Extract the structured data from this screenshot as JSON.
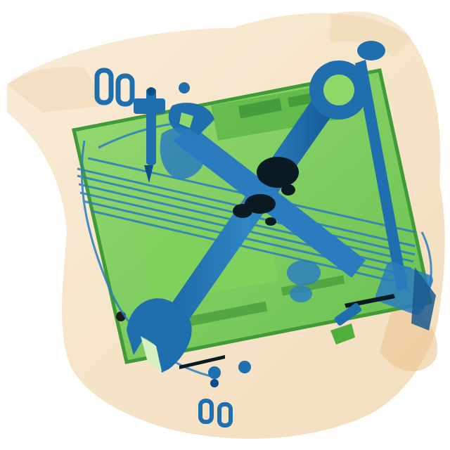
{
  "image": {
    "description_tags": [
      "x-ray",
      "baggage-scan"
    ],
    "palette": {
      "background": "#ffffff",
      "bag": "#f3dcb9",
      "bag_dark": "#e9c89a",
      "board": "#7fcf5c",
      "board_light": "#a8de7a",
      "board_dark": "#4fae3c",
      "metal": "#1f6fae",
      "metal_light": "#3d96cf",
      "metal_dark": "#0e4e86",
      "dense": "#0a1a22",
      "cable": "#2a7cbf"
    },
    "objects": [
      {
        "name": "duffel-bag"
      },
      {
        "name": "laptop-board"
      },
      {
        "name": "wrench-large"
      },
      {
        "name": "wrench-small"
      },
      {
        "name": "screwdriver"
      },
      {
        "name": "cable-bundle"
      },
      {
        "name": "scissors"
      },
      {
        "name": "small-metal-parts"
      }
    ]
  }
}
